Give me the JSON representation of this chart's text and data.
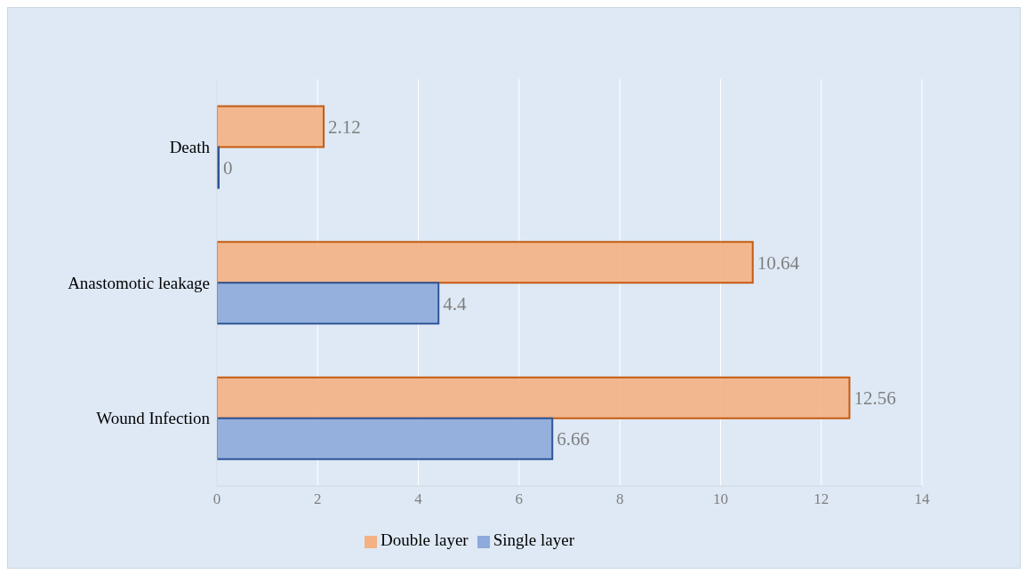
{
  "chart_data": {
    "type": "bar",
    "orientation": "horizontal",
    "categories": [
      "Death",
      "Anastomotic leakage",
      "Wound Infection"
    ],
    "series": [
      {
        "name": "Double layer",
        "color": "#f4b183",
        "values": [
          2.12,
          10.64,
          12.56
        ]
      },
      {
        "name": "Single layer",
        "color": "#8eaadc",
        "values": [
          0,
          4.4,
          6.66
        ]
      }
    ],
    "xlim": [
      0,
      14
    ],
    "xticks": [
      0,
      2,
      4,
      6,
      8,
      10,
      12,
      14
    ],
    "grid": "x",
    "legend": "bottom",
    "data_labels": true
  }
}
